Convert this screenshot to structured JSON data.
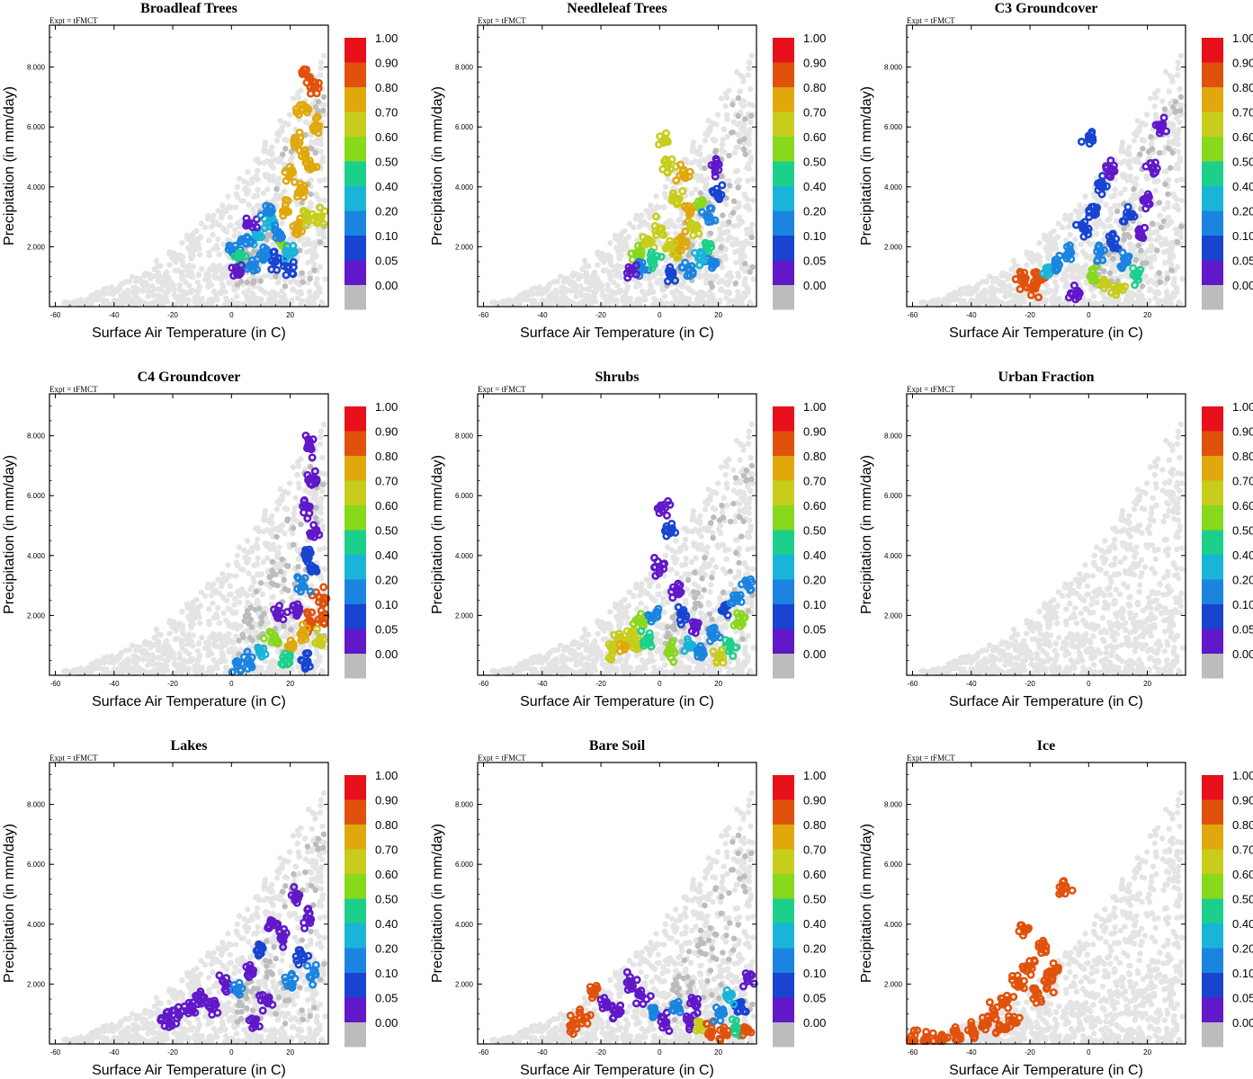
{
  "figure": {
    "experiment_label": "Expt = tFMCT",
    "xlabel": "Surface Air Temperature (in C)",
    "ylabel": "Precipitation (in mm/day)"
  },
  "colorbar": {
    "labels": [
      "1.00",
      "0.90",
      "0.80",
      "0.70",
      "0.60",
      "0.50",
      "0.40",
      "0.20",
      "0.10",
      "0.05",
      "0.00"
    ],
    "colors": [
      "#e8101a",
      "#e0520c",
      "#e0a80c",
      "#c8cc1c",
      "#88d81c",
      "#1cd08c",
      "#1ab4d8",
      "#1a84e0",
      "#1844d0",
      "#6018c8",
      "#bcbcbc"
    ],
    "background_color": "#e4e4e4",
    "zero_color": "#bcbcbc"
  },
  "chart_data": [
    {
      "type": "scatter",
      "title": "Broadleaf Trees",
      "xlabel": "Surface Air Temperature (in C)",
      "ylabel": "Precipitation (in mm/day)",
      "xlim": [
        -62,
        33
      ],
      "ylim": [
        0,
        9.4
      ],
      "xticks": [
        -60,
        -40,
        -20,
        0,
        20
      ],
      "yticks": [
        2,
        4,
        6,
        8
      ],
      "ytick_labels": [
        "2.000",
        "4.000",
        "6.000",
        "8.000"
      ],
      "colored_points": [
        {
          "x": 26,
          "y": 7.7,
          "v": 0.9
        },
        {
          "x": 28,
          "y": 7.3,
          "v": 0.9
        },
        {
          "x": 24,
          "y": 6.6,
          "v": 0.8
        },
        {
          "x": 22,
          "y": 5.5,
          "v": 0.8
        },
        {
          "x": 25,
          "y": 5.0,
          "v": 0.8
        },
        {
          "x": 28,
          "y": 6.0,
          "v": 0.8
        },
        {
          "x": 20,
          "y": 4.4,
          "v": 0.8
        },
        {
          "x": 24,
          "y": 3.8,
          "v": 0.8
        },
        {
          "x": 27,
          "y": 4.6,
          "v": 0.8
        },
        {
          "x": 19,
          "y": 3.2,
          "v": 0.8
        },
        {
          "x": 22,
          "y": 2.6,
          "v": 0.8
        },
        {
          "x": 26,
          "y": 3.0,
          "v": 0.7
        },
        {
          "x": 30,
          "y": 3.0,
          "v": 0.7
        },
        {
          "x": 17,
          "y": 2.2,
          "v": 0.6
        },
        {
          "x": 13,
          "y": 2.8,
          "v": 0.4
        },
        {
          "x": 9,
          "y": 2.4,
          "v": 0.4
        },
        {
          "x": 5,
          "y": 2.1,
          "v": 0.3
        },
        {
          "x": 1,
          "y": 1.9,
          "v": 0.3
        },
        {
          "x": 3,
          "y": 1.6,
          "v": 0.5
        },
        {
          "x": 7,
          "y": 1.4,
          "v": 0.2
        },
        {
          "x": 11,
          "y": 1.8,
          "v": 0.2
        },
        {
          "x": 15,
          "y": 1.5,
          "v": 0.1
        },
        {
          "x": 19,
          "y": 1.3,
          "v": 0.1
        },
        {
          "x": 2,
          "y": 1.2,
          "v": 0.07
        },
        {
          "x": 6,
          "y": 2.8,
          "v": 0.07
        },
        {
          "x": 12,
          "y": 3.2,
          "v": 0.3
        },
        {
          "x": 16,
          "y": 2.5,
          "v": 0.2
        },
        {
          "x": 20,
          "y": 1.8,
          "v": 0.4
        }
      ]
    },
    {
      "type": "scatter",
      "title": "Needleleaf Trees",
      "xlabel": "Surface Air Temperature (in C)",
      "ylabel": "Precipitation (in mm/day)",
      "xlim": [
        -62,
        33
      ],
      "ylim": [
        0,
        9.4
      ],
      "xticks": [
        -60,
        -40,
        -20,
        0,
        20
      ],
      "yticks": [
        2,
        4,
        6,
        8
      ],
      "ytick_labels": [
        "2.000",
        "4.000",
        "6.000",
        "8.000"
      ],
      "colored_points": [
        {
          "x": 2,
          "y": 5.6,
          "v": 0.7
        },
        {
          "x": 3,
          "y": 4.8,
          "v": 0.7
        },
        {
          "x": 8,
          "y": 4.4,
          "v": 0.8
        },
        {
          "x": 6,
          "y": 3.6,
          "v": 0.7
        },
        {
          "x": 10,
          "y": 3.2,
          "v": 0.8
        },
        {
          "x": 8,
          "y": 2.2,
          "v": 0.85
        },
        {
          "x": 6,
          "y": 1.9,
          "v": 0.8
        },
        {
          "x": 0,
          "y": 2.6,
          "v": 0.7
        },
        {
          "x": -4,
          "y": 2.2,
          "v": 0.7
        },
        {
          "x": 4,
          "y": 2.0,
          "v": 0.75
        },
        {
          "x": 12,
          "y": 2.6,
          "v": 0.7
        },
        {
          "x": 14,
          "y": 3.4,
          "v": 0.6
        },
        {
          "x": -8,
          "y": 1.8,
          "v": 0.6
        },
        {
          "x": 16,
          "y": 2.0,
          "v": 0.5
        },
        {
          "x": -6,
          "y": 1.3,
          "v": 0.3
        },
        {
          "x": 18,
          "y": 1.4,
          "v": 0.2
        },
        {
          "x": 20,
          "y": 3.8,
          "v": 0.1
        },
        {
          "x": 19,
          "y": 4.6,
          "v": 0.07
        },
        {
          "x": -10,
          "y": 1.2,
          "v": 0.07
        },
        {
          "x": 4,
          "y": 1.1,
          "v": 0.1
        },
        {
          "x": 10,
          "y": 1.2,
          "v": 0.2
        },
        {
          "x": 14,
          "y": 1.6,
          "v": 0.4
        },
        {
          "x": -2,
          "y": 1.6,
          "v": 0.5
        },
        {
          "x": 17,
          "y": 3.0,
          "v": 0.2
        }
      ]
    },
    {
      "type": "scatter",
      "title": "C3 Groundcover",
      "xlabel": "Surface Air Temperature (in C)",
      "ylabel": "Precipitation (in mm/day)",
      "xlim": [
        -62,
        33
      ],
      "ylim": [
        0,
        9.4
      ],
      "xticks": [
        -60,
        -40,
        -20,
        0,
        20
      ],
      "yticks": [
        2,
        4,
        6,
        8
      ],
      "ytick_labels": [
        "2.000",
        "4.000",
        "6.000",
        "8.000"
      ],
      "colored_points": [
        {
          "x": -22,
          "y": 0.8,
          "v": 0.95
        },
        {
          "x": -19,
          "y": 0.7,
          "v": 0.95
        },
        {
          "x": -17,
          "y": 1.0,
          "v": 0.9
        },
        {
          "x": -14,
          "y": 1.2,
          "v": 0.4
        },
        {
          "x": -10,
          "y": 1.4,
          "v": 0.3
        },
        {
          "x": -6,
          "y": 1.8,
          "v": 0.2
        },
        {
          "x": -2,
          "y": 2.6,
          "v": 0.15
        },
        {
          "x": 2,
          "y": 3.2,
          "v": 0.12
        },
        {
          "x": 0,
          "y": 5.6,
          "v": 0.1
        },
        {
          "x": 4,
          "y": 4.0,
          "v": 0.1
        },
        {
          "x": 8,
          "y": 2.2,
          "v": 0.1
        },
        {
          "x": 12,
          "y": 1.6,
          "v": 0.2
        },
        {
          "x": 6,
          "y": 0.8,
          "v": 0.7
        },
        {
          "x": 10,
          "y": 0.6,
          "v": 0.75
        },
        {
          "x": 2,
          "y": 1.0,
          "v": 0.6
        },
        {
          "x": 16,
          "y": 1.0,
          "v": 0.5
        },
        {
          "x": 18,
          "y": 2.4,
          "v": 0.07
        },
        {
          "x": 20,
          "y": 3.6,
          "v": 0.07
        },
        {
          "x": 22,
          "y": 4.6,
          "v": 0.07
        },
        {
          "x": 24,
          "y": 6.0,
          "v": 0.07
        },
        {
          "x": 14,
          "y": 3.0,
          "v": 0.1
        },
        {
          "x": -4,
          "y": 0.5,
          "v": 0.07
        },
        {
          "x": 8,
          "y": 4.6,
          "v": 0.07
        },
        {
          "x": 4,
          "y": 1.8,
          "v": 0.3
        }
      ]
    },
    {
      "type": "scatter",
      "title": "C4 Groundcover",
      "xlabel": "Surface Air Temperature (in C)",
      "ylabel": "Precipitation (in mm/day)",
      "xlim": [
        -62,
        33
      ],
      "ylim": [
        0,
        9.4
      ],
      "xticks": [
        -60,
        -40,
        -20,
        0,
        20
      ],
      "yticks": [
        2,
        4,
        6,
        8
      ],
      "ytick_labels": [
        "2.000",
        "4.000",
        "6.000",
        "8.000"
      ],
      "colored_points": [
        {
          "x": 27,
          "y": 7.6,
          "v": 0.07
        },
        {
          "x": 28,
          "y": 6.6,
          "v": 0.07
        },
        {
          "x": 26,
          "y": 5.6,
          "v": 0.07
        },
        {
          "x": 29,
          "y": 4.8,
          "v": 0.07
        },
        {
          "x": 25,
          "y": 4.0,
          "v": 0.1
        },
        {
          "x": 28,
          "y": 3.6,
          "v": 0.1
        },
        {
          "x": 30,
          "y": 2.6,
          "v": 0.95
        },
        {
          "x": 31,
          "y": 2.0,
          "v": 0.9
        },
        {
          "x": 27,
          "y": 1.8,
          "v": 0.9
        },
        {
          "x": 24,
          "y": 1.4,
          "v": 0.85
        },
        {
          "x": 20,
          "y": 1.0,
          "v": 0.8
        },
        {
          "x": 22,
          "y": 2.2,
          "v": 0.07
        },
        {
          "x": 16,
          "y": 2.0,
          "v": 0.07
        },
        {
          "x": 14,
          "y": 1.2,
          "v": 0.6
        },
        {
          "x": 10,
          "y": 0.8,
          "v": 0.4
        },
        {
          "x": 6,
          "y": 0.4,
          "v": 0.2
        },
        {
          "x": 2,
          "y": 0.3,
          "v": 0.3
        },
        {
          "x": 18,
          "y": 0.5,
          "v": 0.5
        },
        {
          "x": 26,
          "y": 0.4,
          "v": 0.1
        },
        {
          "x": 30,
          "y": 1.2,
          "v": 0.7
        },
        {
          "x": 24,
          "y": 3.0,
          "v": 0.2
        }
      ]
    },
    {
      "type": "scatter",
      "title": "Shrubs",
      "xlabel": "Surface Air Temperature (in C)",
      "ylabel": "Precipitation (in mm/day)",
      "xlim": [
        -62,
        33
      ],
      "ylim": [
        0,
        9.4
      ],
      "xticks": [
        -60,
        -40,
        -20,
        0,
        20
      ],
      "yticks": [
        2,
        4,
        6,
        8
      ],
      "ytick_labels": [
        "2.000",
        "4.000",
        "6.000",
        "8.000"
      ],
      "colored_points": [
        {
          "x": -16,
          "y": 0.8,
          "v": 0.75
        },
        {
          "x": -14,
          "y": 1.2,
          "v": 0.75
        },
        {
          "x": -12,
          "y": 1.0,
          "v": 0.8
        },
        {
          "x": -10,
          "y": 1.4,
          "v": 0.7
        },
        {
          "x": -8,
          "y": 1.0,
          "v": 0.7
        },
        {
          "x": -6,
          "y": 1.8,
          "v": 0.6
        },
        {
          "x": -4,
          "y": 1.2,
          "v": 0.5
        },
        {
          "x": -2,
          "y": 2.0,
          "v": 0.3
        },
        {
          "x": 2,
          "y": 5.6,
          "v": 0.07
        },
        {
          "x": 4,
          "y": 4.8,
          "v": 0.1
        },
        {
          "x": 0,
          "y": 3.6,
          "v": 0.07
        },
        {
          "x": 6,
          "y": 2.8,
          "v": 0.07
        },
        {
          "x": 8,
          "y": 2.0,
          "v": 0.1
        },
        {
          "x": 10,
          "y": 1.0,
          "v": 0.4
        },
        {
          "x": 14,
          "y": 0.8,
          "v": 0.3
        },
        {
          "x": 18,
          "y": 1.4,
          "v": 0.2
        },
        {
          "x": 22,
          "y": 2.2,
          "v": 0.1
        },
        {
          "x": 26,
          "y": 2.6,
          "v": 0.3
        },
        {
          "x": 30,
          "y": 3.0,
          "v": 0.2
        },
        {
          "x": 28,
          "y": 1.8,
          "v": 0.6
        },
        {
          "x": 24,
          "y": 1.0,
          "v": 0.5
        },
        {
          "x": 4,
          "y": 0.8,
          "v": 0.6
        },
        {
          "x": 12,
          "y": 1.6,
          "v": 0.07
        },
        {
          "x": 20,
          "y": 0.6,
          "v": 0.7
        }
      ]
    },
    {
      "type": "scatter",
      "title": "Urban Fraction",
      "xlabel": "Surface Air Temperature (in C)",
      "ylabel": "Precipitation (in mm/day)",
      "xlim": [
        -62,
        33
      ],
      "ylim": [
        0,
        9.4
      ],
      "xticks": [
        -60,
        -40,
        -20,
        0,
        20
      ],
      "yticks": [
        2,
        4,
        6,
        8
      ],
      "ytick_labels": [
        "2.000",
        "4.000",
        "6.000",
        "8.000"
      ],
      "colored_points": []
    },
    {
      "type": "scatter",
      "title": "Lakes",
      "xlabel": "Surface Air Temperature (in C)",
      "ylabel": "Precipitation (in mm/day)",
      "xlim": [
        -62,
        33
      ],
      "ylim": [
        0,
        9.4
      ],
      "xticks": [
        -60,
        -40,
        -20,
        0,
        20
      ],
      "yticks": [
        2,
        4,
        6,
        8
      ],
      "ytick_labels": [
        "2.000",
        "4.000",
        "6.000",
        "8.000"
      ],
      "colored_points": [
        {
          "x": -22,
          "y": 0.8,
          "v": 0.07
        },
        {
          "x": -18,
          "y": 1.0,
          "v": 0.07
        },
        {
          "x": -14,
          "y": 1.2,
          "v": 0.07
        },
        {
          "x": -10,
          "y": 1.6,
          "v": 0.07
        },
        {
          "x": -6,
          "y": 1.2,
          "v": 0.07
        },
        {
          "x": -2,
          "y": 2.0,
          "v": 0.07
        },
        {
          "x": 2,
          "y": 1.8,
          "v": 0.2
        },
        {
          "x": 6,
          "y": 2.4,
          "v": 0.07
        },
        {
          "x": 10,
          "y": 3.2,
          "v": 0.1
        },
        {
          "x": 14,
          "y": 4.0,
          "v": 0.07
        },
        {
          "x": 18,
          "y": 3.6,
          "v": 0.07
        },
        {
          "x": 22,
          "y": 5.0,
          "v": 0.07
        },
        {
          "x": 26,
          "y": 4.2,
          "v": 0.07
        },
        {
          "x": 28,
          "y": 2.4,
          "v": 0.3
        },
        {
          "x": 12,
          "y": 1.4,
          "v": 0.07
        },
        {
          "x": 8,
          "y": 0.6,
          "v": 0.07
        },
        {
          "x": 20,
          "y": 2.0,
          "v": 0.2
        },
        {
          "x": 24,
          "y": 3.0,
          "v": 0.1
        }
      ]
    },
    {
      "type": "scatter",
      "title": "Bare Soil",
      "xlabel": "Surface Air Temperature (in C)",
      "ylabel": "Precipitation (in mm/day)",
      "xlim": [
        -62,
        33
      ],
      "ylim": [
        0,
        9.4
      ],
      "xticks": [
        -60,
        -40,
        -20,
        0,
        20
      ],
      "yticks": [
        2,
        4,
        6,
        8
      ],
      "ytick_labels": [
        "2.000",
        "4.000",
        "6.000",
        "8.000"
      ],
      "colored_points": [
        {
          "x": -30,
          "y": 0.6,
          "v": 0.95
        },
        {
          "x": -26,
          "y": 0.8,
          "v": 0.9
        },
        {
          "x": -22,
          "y": 1.8,
          "v": 0.95
        },
        {
          "x": -18,
          "y": 1.4,
          "v": 0.07
        },
        {
          "x": -14,
          "y": 1.0,
          "v": 0.07
        },
        {
          "x": -10,
          "y": 2.0,
          "v": 0.07
        },
        {
          "x": -6,
          "y": 1.6,
          "v": 0.07
        },
        {
          "x": -2,
          "y": 1.0,
          "v": 0.2
        },
        {
          "x": 2,
          "y": 0.7,
          "v": 0.07
        },
        {
          "x": 6,
          "y": 1.2,
          "v": 0.3
        },
        {
          "x": 10,
          "y": 0.8,
          "v": 0.07
        },
        {
          "x": 14,
          "y": 0.6,
          "v": 0.7
        },
        {
          "x": 18,
          "y": 0.4,
          "v": 0.95
        },
        {
          "x": 22,
          "y": 0.3,
          "v": 0.9
        },
        {
          "x": 26,
          "y": 0.6,
          "v": 0.5
        },
        {
          "x": 28,
          "y": 1.2,
          "v": 0.1
        },
        {
          "x": 30,
          "y": 2.2,
          "v": 0.07
        },
        {
          "x": 30,
          "y": 0.5,
          "v": 0.95
        },
        {
          "x": 20,
          "y": 1.0,
          "v": 0.2
        },
        {
          "x": 24,
          "y": 1.6,
          "v": 0.4
        },
        {
          "x": 12,
          "y": 1.4,
          "v": 0.07
        }
      ]
    },
    {
      "type": "scatter",
      "title": "Ice",
      "xlabel": "Surface Air Temperature (in C)",
      "ylabel": "Precipitation (in mm/day)",
      "xlim": [
        -62,
        33
      ],
      "ylim": [
        0,
        9.4
      ],
      "xticks": [
        -60,
        -40,
        -20,
        0,
        20
      ],
      "yticks": [
        2,
        4,
        6,
        8
      ],
      "ytick_labels": [
        "2.000",
        "4.000",
        "6.000",
        "8.000"
      ],
      "colored_points": [
        {
          "x": -60,
          "y": 0.1,
          "v": 0.95
        },
        {
          "x": -55,
          "y": 0.15,
          "v": 0.95
        },
        {
          "x": -50,
          "y": 0.25,
          "v": 0.95
        },
        {
          "x": -45,
          "y": 0.35,
          "v": 0.95
        },
        {
          "x": -40,
          "y": 0.4,
          "v": 0.95
        },
        {
          "x": -36,
          "y": 0.7,
          "v": 0.95
        },
        {
          "x": -32,
          "y": 1.0,
          "v": 0.95
        },
        {
          "x": -28,
          "y": 1.4,
          "v": 0.95
        },
        {
          "x": -24,
          "y": 2.0,
          "v": 0.95
        },
        {
          "x": -20,
          "y": 2.6,
          "v": 0.95
        },
        {
          "x": -16,
          "y": 3.2,
          "v": 0.95
        },
        {
          "x": -12,
          "y": 2.4,
          "v": 0.95
        },
        {
          "x": -8,
          "y": 5.2,
          "v": 0.95
        },
        {
          "x": -18,
          "y": 1.6,
          "v": 0.95
        },
        {
          "x": -26,
          "y": 0.8,
          "v": 0.95
        },
        {
          "x": -22,
          "y": 3.8,
          "v": 0.95
        },
        {
          "x": -30,
          "y": 0.5,
          "v": 0.95
        },
        {
          "x": -14,
          "y": 2.0,
          "v": 0.95
        }
      ]
    }
  ]
}
